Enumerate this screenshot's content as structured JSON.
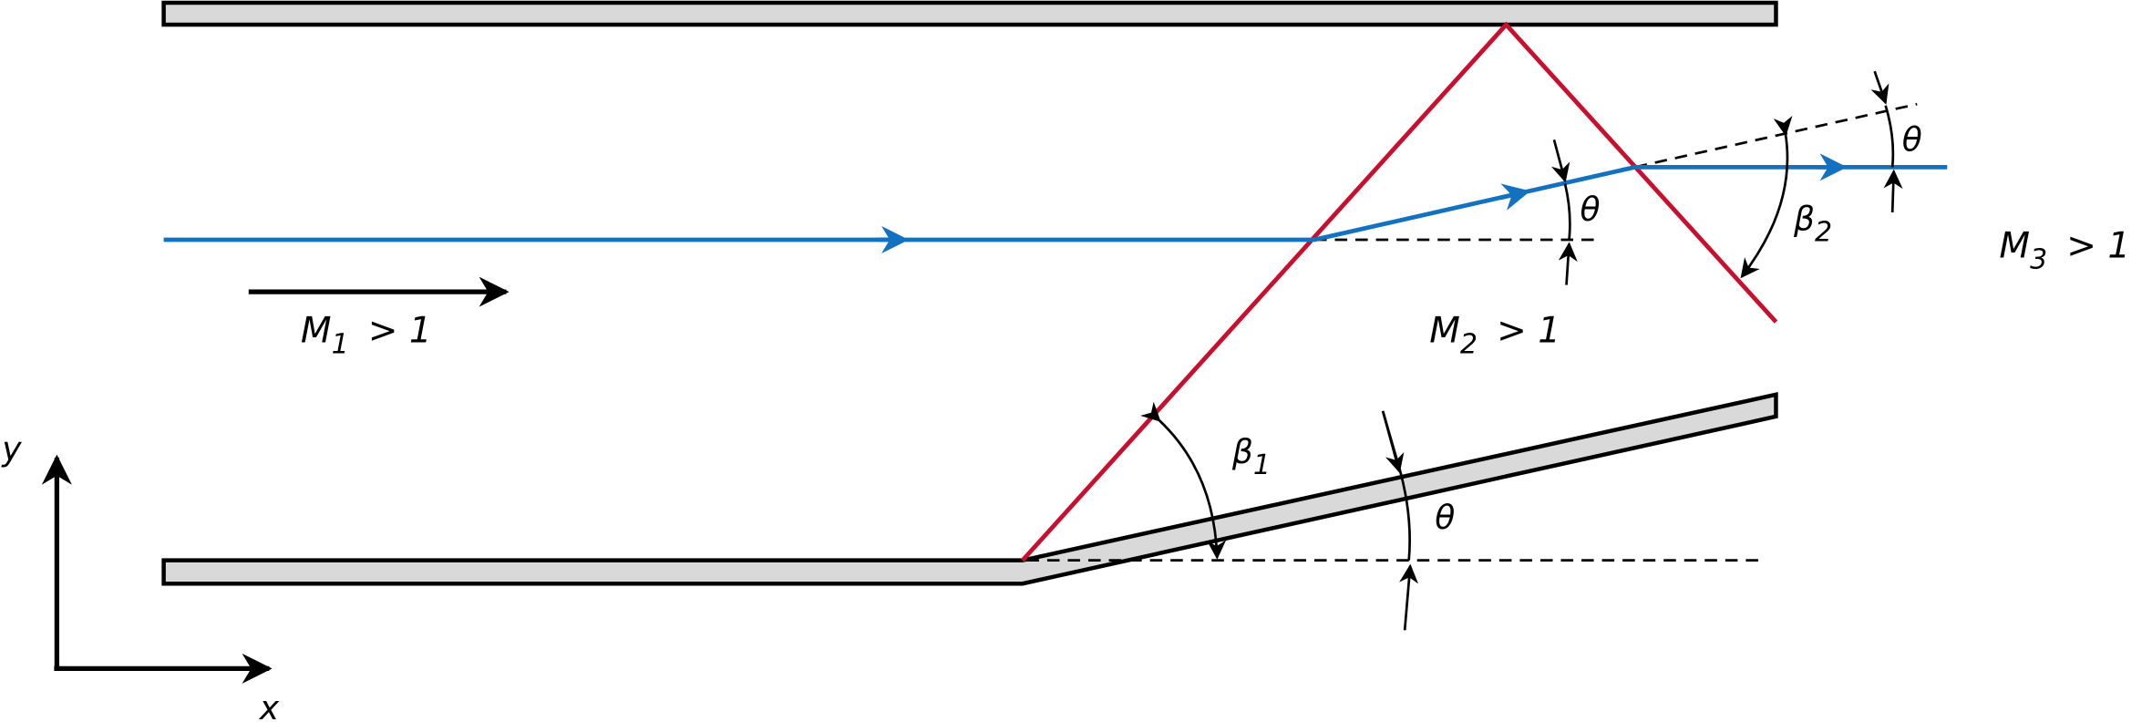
{
  "regions": [
    {
      "symbol": "M",
      "subscript": "1",
      "condition": "> 1"
    },
    {
      "symbol": "M",
      "subscript": "2",
      "condition": "> 1"
    },
    {
      "symbol": "M",
      "subscript": "3",
      "condition": "> 1"
    }
  ],
  "angles": {
    "deflection": [
      "θ",
      "θ",
      "θ"
    ],
    "shock_1": {
      "symbol": "β",
      "subscript": "1"
    },
    "shock_2": {
      "symbol": "β",
      "subscript": "2"
    }
  },
  "axes": {
    "x": "x",
    "y": "y"
  }
}
